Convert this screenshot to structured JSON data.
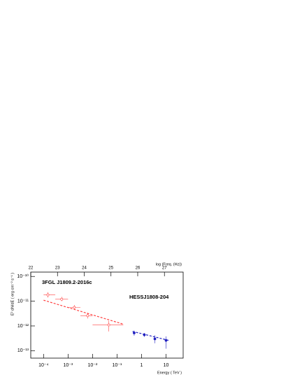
{
  "chart_data": {
    "type": "sed",
    "x_label": "Energy ( TeV )",
    "y_label": "E² dN/dE ( erg cm⁻² s⁻¹ )",
    "x2_label": "log (Freq. (Hz))",
    "log_x": true,
    "log_y": true,
    "xlim": [
      3e-05,
      50
    ],
    "xticks": [
      {
        "value": 0.0001,
        "label": "10⁻⁴"
      },
      {
        "value": 0.001,
        "label": "10⁻³"
      },
      {
        "value": 0.01,
        "label": "10⁻²"
      },
      {
        "value": 0.1,
        "label": "10⁻¹"
      },
      1,
      10
    ],
    "ylim": [
      5e-14,
      1.5e-10
    ],
    "yticks": [
      {
        "value": 1e-10,
        "label": "10⁻¹⁰"
      },
      {
        "value": 1e-11,
        "label": "10⁻¹¹"
      },
      {
        "value": 1e-12,
        "label": "10⁻¹²"
      },
      {
        "value": 1e-13,
        "label": "10⁻¹³"
      }
    ],
    "x2lim": [
      22,
      27.7
    ],
    "x2ticks": [
      22,
      23,
      24,
      25,
      26,
      27
    ],
    "series": [
      {
        "name": "3FGL J1809.2-2016c",
        "color": "#ff4040",
        "marker": "open",
        "x": [
          0.00015,
          0.00055,
          0.0018,
          0.0063,
          0.046
        ],
        "x_low": [
          0.0001,
          0.0003,
          0.001,
          0.0032,
          0.01
        ],
        "x_high": [
          0.0003,
          0.001,
          0.0032,
          0.01,
          0.18
        ],
        "values": [
          1.8e-11,
          1.2e-11,
          5.6e-12,
          2.6e-12,
          1.1e-12
        ],
        "y_low": [
          1.4e-11,
          1e-11,
          4.5e-12,
          2e-12,
          6e-13
        ],
        "y_high": [
          2.3e-11,
          1.5e-11,
          7e-12,
          3.4e-12,
          1.6e-12
        ],
        "fit_x": [
          0.0001,
          0.17
        ],
        "fit_y": [
          1.1e-11,
          1.2e-12
        ]
      },
      {
        "name": "HESSJ1808-204",
        "color": "#2020c0",
        "marker": "filled",
        "x": [
          0.5,
          1.3,
          3.5,
          10
        ],
        "values": [
          5.2e-13,
          4.4e-13,
          3e-13,
          2.6e-13
        ],
        "y_low": [
          4e-13,
          3.6e-13,
          2e-13,
          1.2e-13
        ],
        "y_high": [
          6.5e-13,
          5.2e-13,
          4.2e-13,
          3.8e-13
        ],
        "fit_x": [
          0.43,
          13
        ],
        "fit_y": [
          6e-13,
          2.6e-13
        ]
      }
    ]
  }
}
